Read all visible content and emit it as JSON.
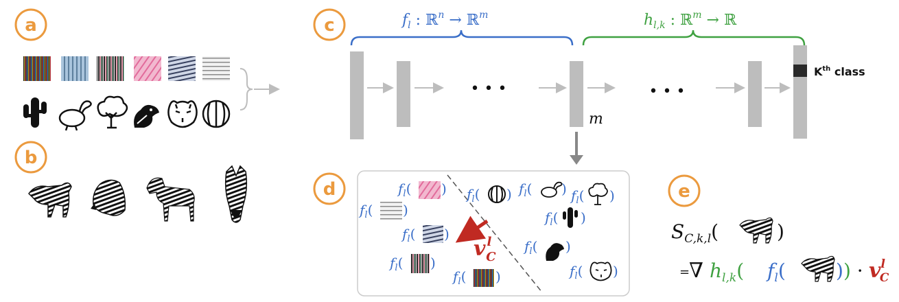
{
  "panels": {
    "a": "a",
    "b": "b",
    "c": "c",
    "d": "d",
    "e": "e"
  },
  "network": {
    "f_label_fn": "f",
    "f_label_sub": "l",
    "f_label_rest": " : ℝ",
    "f_label_n": "n",
    "f_label_arrow": " → ℝ",
    "f_label_m": "m",
    "h_label_fn": "h",
    "h_label_sub": "l,k",
    "h_label_rest": " : ℝ",
    "h_label_m": "m",
    "h_label_arrow": " → ℝ",
    "ellipsis_left": "• • •",
    "ellipsis_right": "• • •",
    "layer_dim": "m",
    "kth_class_K": "K",
    "kth_class_th": "th",
    "kth_class_rest": " class"
  },
  "embedding": {
    "f": "f",
    "l": "l",
    "open": "(",
    "close": ")",
    "vector_v": "v",
    "vector_sup": "l",
    "vector_sub": "C"
  },
  "sensitivity": {
    "S": "S",
    "S_sub": "C,k,l",
    "open": "(",
    "close": ")",
    "eq": "=",
    "nabla": "∇",
    "h": "h",
    "h_sub": "l,k",
    "f": "f",
    "f_sub": "l",
    "inner_open": "(",
    "inner_close": "))",
    "dot": " · ",
    "v": "v",
    "v_sup": "l",
    "v_sub": "C"
  },
  "colors": {
    "orange": "#eb9a3e",
    "blue": "#3a6ec8",
    "green": "#3fa141",
    "red": "#c02a22",
    "gray": "#bdbdbd"
  }
}
